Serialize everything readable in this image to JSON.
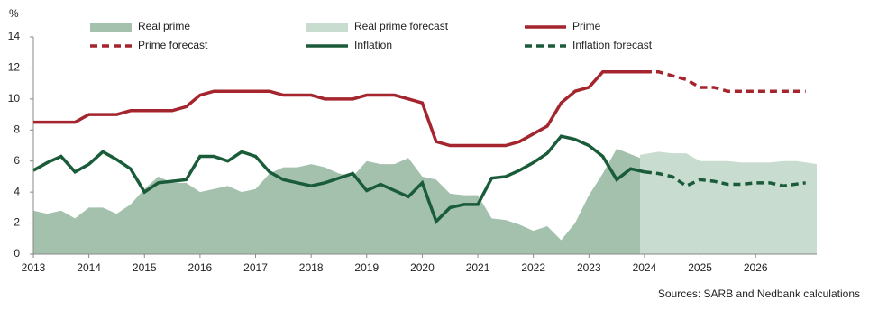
{
  "chart_data": {
    "type": "line",
    "y_unit": "%",
    "source": "Sources: SARB and Nedbank calculations",
    "xlim": [
      2013,
      2027.1
    ],
    "xticks": [
      2013,
      2014,
      2015,
      2016,
      2017,
      2018,
      2019,
      2020,
      2021,
      2022,
      2023,
      2024,
      2025,
      2026
    ],
    "ylim": [
      0,
      14
    ],
    "yticks": [
      0,
      2,
      4,
      6,
      8,
      10,
      12,
      14
    ],
    "series": [
      {
        "name": "Real prime",
        "kind": "area",
        "color": "#a3c1ad",
        "x": [
          2013,
          2013.25,
          2013.5,
          2013.75,
          2014,
          2014.25,
          2014.5,
          2014.75,
          2015,
          2015.25,
          2015.5,
          2015.75,
          2016,
          2016.25,
          2016.5,
          2016.75,
          2017,
          2017.25,
          2017.5,
          2017.75,
          2018,
          2018.25,
          2018.5,
          2018.75,
          2019,
          2019.25,
          2019.5,
          2019.75,
          2020,
          2020.25,
          2020.5,
          2020.75,
          2021,
          2021.25,
          2021.5,
          2021.75,
          2022,
          2022.25,
          2022.5,
          2022.75,
          2023,
          2023.25,
          2023.5,
          2023.92
        ],
        "values": [
          2.8,
          2.6,
          2.8,
          2.3,
          3.0,
          3.0,
          2.6,
          3.2,
          4.2,
          5.0,
          4.6,
          4.6,
          4.0,
          4.2,
          4.4,
          4.0,
          4.2,
          5.2,
          5.6,
          5.6,
          5.8,
          5.6,
          5.2,
          5.0,
          6.0,
          5.8,
          5.8,
          6.2,
          5.0,
          4.8,
          3.9,
          3.8,
          3.8,
          2.3,
          2.2,
          1.9,
          1.5,
          1.8,
          0.9,
          2.0,
          3.8,
          5.2,
          6.8,
          6.2
        ]
      },
      {
        "name": "Real prime forecast",
        "kind": "area",
        "color": "#c8dccf",
        "x": [
          2023.92,
          2024.25,
          2024.5,
          2024.75,
          2025,
          2025.25,
          2025.5,
          2025.75,
          2026,
          2026.25,
          2026.5,
          2026.75,
          2027.1
        ],
        "values": [
          6.4,
          6.6,
          6.5,
          6.5,
          6.0,
          6.0,
          6.0,
          5.9,
          5.9,
          5.9,
          6.0,
          6.0,
          5.8
        ]
      },
      {
        "name": "Prime",
        "kind": "line",
        "dash": false,
        "color": "#a4252d",
        "x": [
          2013,
          2013.25,
          2013.5,
          2013.75,
          2014,
          2014.25,
          2014.5,
          2014.75,
          2015,
          2015.25,
          2015.5,
          2015.75,
          2016,
          2016.25,
          2016.5,
          2016.75,
          2017,
          2017.25,
          2017.5,
          2017.75,
          2018,
          2018.25,
          2018.5,
          2018.75,
          2019,
          2019.25,
          2019.5,
          2019.75,
          2020,
          2020.25,
          2020.5,
          2020.75,
          2021,
          2021.25,
          2021.5,
          2021.75,
          2022,
          2022.25,
          2022.5,
          2022.75,
          2023,
          2023.25,
          2023.5,
          2023.75,
          2024
        ],
        "values": [
          8.5,
          8.5,
          8.5,
          8.5,
          9,
          9,
          9,
          9.25,
          9.25,
          9.25,
          9.25,
          9.5,
          10.25,
          10.5,
          10.5,
          10.5,
          10.5,
          10.5,
          10.25,
          10.25,
          10.25,
          10,
          10,
          10,
          10.25,
          10.25,
          10.25,
          10,
          9.75,
          7.25,
          7,
          7,
          7,
          7,
          7,
          7.25,
          7.75,
          8.25,
          9.75,
          10.5,
          10.75,
          11.75,
          11.75,
          11.75,
          11.75
        ]
      },
      {
        "name": "Prime forecast",
        "kind": "line",
        "dash": true,
        "color": "#a4252d",
        "x": [
          2024,
          2024.25,
          2024.5,
          2024.75,
          2025,
          2025.25,
          2025.5,
          2025.75,
          2026,
          2026.25,
          2026.5,
          2026.9
        ],
        "values": [
          11.75,
          11.75,
          11.5,
          11.25,
          10.75,
          10.75,
          10.5,
          10.5,
          10.5,
          10.5,
          10.5,
          10.5
        ]
      },
      {
        "name": "Inflation",
        "kind": "line",
        "dash": false,
        "color": "#1a5c3a",
        "x": [
          2013,
          2013.25,
          2013.5,
          2013.75,
          2014,
          2014.25,
          2014.5,
          2014.75,
          2015,
          2015.25,
          2015.5,
          2015.75,
          2016,
          2016.25,
          2016.5,
          2016.75,
          2017,
          2017.25,
          2017.5,
          2017.75,
          2018,
          2018.25,
          2018.5,
          2018.75,
          2019,
          2019.25,
          2019.5,
          2019.75,
          2020,
          2020.25,
          2020.5,
          2020.75,
          2021,
          2021.25,
          2021.5,
          2021.75,
          2022,
          2022.25,
          2022.5,
          2022.75,
          2023,
          2023.25,
          2023.5,
          2023.75,
          2024
        ],
        "values": [
          5.4,
          5.9,
          6.3,
          5.3,
          5.8,
          6.6,
          6.1,
          5.5,
          4.0,
          4.6,
          4.7,
          4.8,
          6.3,
          6.3,
          6.0,
          6.6,
          6.3,
          5.3,
          4.8,
          4.6,
          4.4,
          4.6,
          4.9,
          5.2,
          4.1,
          4.5,
          4.1,
          3.7,
          4.6,
          2.1,
          3.0,
          3.2,
          3.2,
          4.9,
          5.0,
          5.4,
          5.9,
          6.5,
          7.6,
          7.4,
          7.0,
          6.3,
          4.8,
          5.5,
          5.3
        ]
      },
      {
        "name": "Inflation forecast",
        "kind": "line",
        "dash": true,
        "color": "#1a5c3a",
        "x": [
          2024,
          2024.25,
          2024.5,
          2024.75,
          2025,
          2025.25,
          2025.5,
          2025.75,
          2026,
          2026.25,
          2026.5,
          2026.9
        ],
        "values": [
          5.3,
          5.2,
          5.0,
          4.4,
          4.8,
          4.7,
          4.5,
          4.5,
          4.6,
          4.6,
          4.4,
          4.6
        ]
      }
    ]
  }
}
